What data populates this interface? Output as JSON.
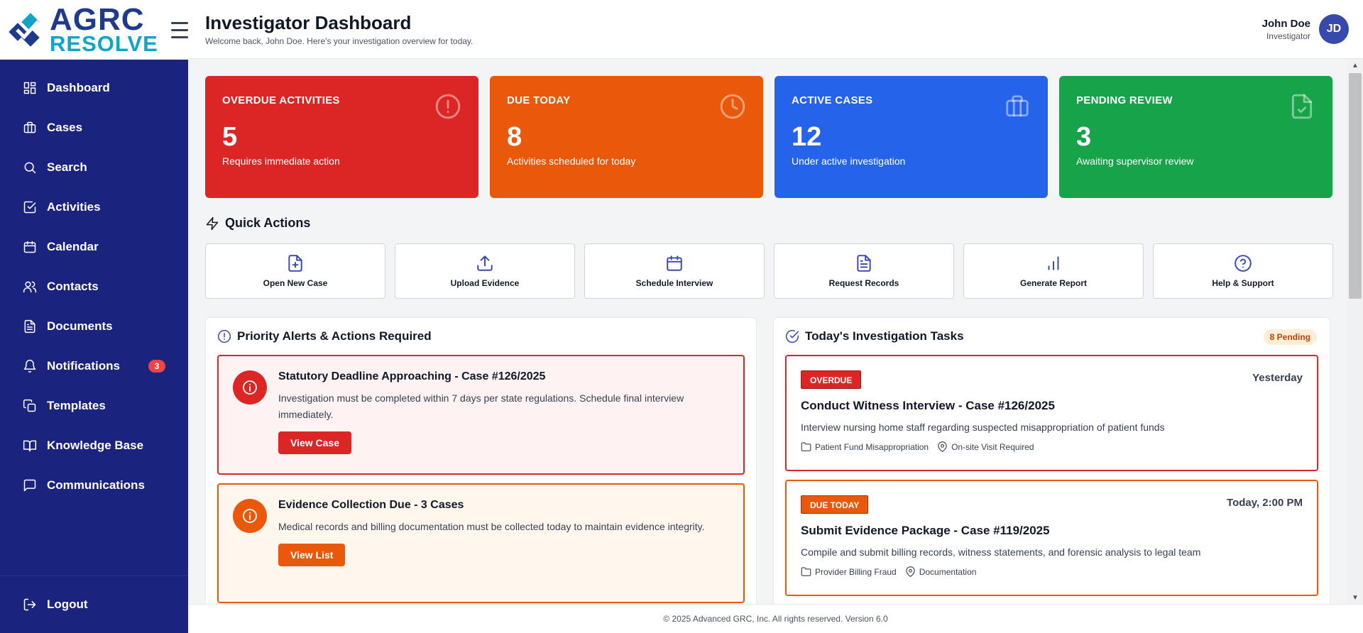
{
  "brand": {
    "line1": "AGRC",
    "line2": "RESOLVE"
  },
  "header": {
    "title": "Investigator Dashboard",
    "subtitle": "Welcome back, John Doe. Here's your investigation overview for today.",
    "user_name": "John Doe",
    "user_role": "Investigator",
    "avatar_initials": "JD"
  },
  "sidebar": {
    "items": [
      {
        "label": "Dashboard",
        "icon": "grid-icon"
      },
      {
        "label": "Cases",
        "icon": "briefcase-icon"
      },
      {
        "label": "Search",
        "icon": "search-icon"
      },
      {
        "label": "Activities",
        "icon": "check-square-icon"
      },
      {
        "label": "Calendar",
        "icon": "calendar-icon"
      },
      {
        "label": "Contacts",
        "icon": "users-icon"
      },
      {
        "label": "Documents",
        "icon": "document-icon"
      },
      {
        "label": "Notifications",
        "icon": "bell-icon",
        "badge": "3"
      },
      {
        "label": "Templates",
        "icon": "copy-icon"
      },
      {
        "label": "Knowledge Base",
        "icon": "book-icon"
      },
      {
        "label": "Communications",
        "icon": "message-icon"
      }
    ],
    "logout": "Logout"
  },
  "stats": [
    {
      "label": "OVERDUE ACTIVITIES",
      "value": "5",
      "desc": "Requires immediate action",
      "color": "#dc2626",
      "icon": "alert-circle-icon"
    },
    {
      "label": "DUE TODAY",
      "value": "8",
      "desc": "Activities scheduled for today",
      "color": "#ea580c",
      "icon": "clock-icon"
    },
    {
      "label": "ACTIVE CASES",
      "value": "12",
      "desc": "Under active investigation",
      "color": "#2563eb",
      "icon": "briefcase-icon"
    },
    {
      "label": "PENDING REVIEW",
      "value": "3",
      "desc": "Awaiting supervisor review",
      "color": "#16a34a",
      "icon": "file-check-icon"
    }
  ],
  "quick_actions": {
    "title": "Quick Actions",
    "items": [
      {
        "label": "Open New Case",
        "icon": "file-plus-icon"
      },
      {
        "label": "Upload Evidence",
        "icon": "upload-icon"
      },
      {
        "label": "Schedule Interview",
        "icon": "calendar-icon"
      },
      {
        "label": "Request Records",
        "icon": "file-text-icon"
      },
      {
        "label": "Generate Report",
        "icon": "bar-chart-icon"
      },
      {
        "label": "Help & Support",
        "icon": "help-circle-icon"
      }
    ]
  },
  "alerts": {
    "title": "Priority Alerts & Actions Required",
    "items": [
      {
        "title": "Statutory Deadline Approaching - Case #126/2025",
        "text": "Investigation must be completed within 7 days per state regulations. Schedule final interview immediately.",
        "button": "View Case",
        "color": "#dc2626"
      },
      {
        "title": "Evidence Collection Due - 3 Cases",
        "text": "Medical records and billing documentation must be collected today to maintain evidence integrity.",
        "button": "View List",
        "color": "#ea580c"
      }
    ]
  },
  "tasks": {
    "title": "Today's Investigation Tasks",
    "pending": "8 Pending",
    "items": [
      {
        "badge": "OVERDUE",
        "time": "Yesterday",
        "title": "Conduct Witness Interview - Case #126/2025",
        "desc": "Interview nursing home staff regarding suspected misappropriation of patient funds",
        "category": "Patient Fund Misappropriation",
        "location": "On-site Visit Required"
      },
      {
        "badge": "DUE TODAY",
        "time": "Today, 2:00 PM",
        "title": "Submit Evidence Package - Case #119/2025",
        "desc": "Compile and submit billing records, witness statements, and forensic analysis to legal team",
        "category": "Provider Billing Fraud",
        "location": "Documentation"
      }
    ]
  },
  "footer": "© 2025 Advanced GRC, Inc. All rights reserved. Version 6.0"
}
